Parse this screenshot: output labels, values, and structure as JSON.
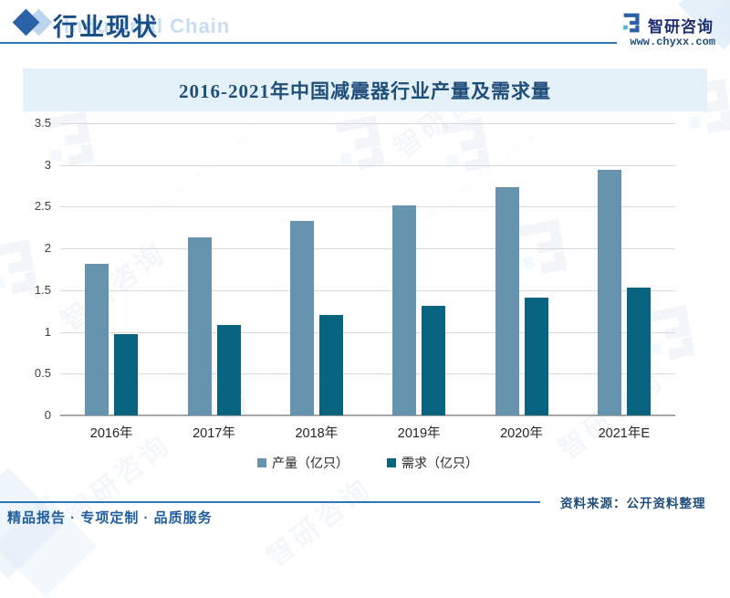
{
  "header": {
    "title": "行业现状",
    "watermark_en": "Industrial Chain",
    "brand_name": "智研咨询",
    "brand_url": "www.chyxx.com"
  },
  "chart_data": {
    "type": "bar",
    "title": "2016-2021年中国减震器行业产量及需求量",
    "categories": [
      "2016年",
      "2017年",
      "2018年",
      "2019年",
      "2020年",
      "2021年E"
    ],
    "series": [
      {
        "name": "产量（亿只）",
        "color": "#6694ae",
        "values": [
          1.82,
          2.13,
          2.33,
          2.52,
          2.73,
          2.94
        ]
      },
      {
        "name": "需求（亿只）",
        "color": "#086381",
        "values": [
          0.97,
          1.08,
          1.2,
          1.31,
          1.41,
          1.53
        ]
      }
    ],
    "xlabel": "",
    "ylabel": "",
    "ylim": [
      0,
      3.5
    ],
    "ytick_step": 0.5,
    "yticks": [
      0,
      0.5,
      1,
      1.5,
      2,
      2.5,
      3,
      3.5
    ],
    "grid": true,
    "legend_position": "bottom"
  },
  "footer": {
    "source": "资料来源：公开资料整理",
    "tagline": "精品报告 · 专项定制 · 品质服务"
  },
  "watermark": {
    "text": "智研咨询",
    "subtext": "INTELLIGENCE RESEARCH GROUP"
  },
  "colors": {
    "accent_line": "#2e75b6",
    "banner_bg": "#e4f1f9",
    "title_blue": "#1f4e79",
    "header_blue": "#175089",
    "production_bar": "#6694ae",
    "demand_bar": "#086381"
  }
}
